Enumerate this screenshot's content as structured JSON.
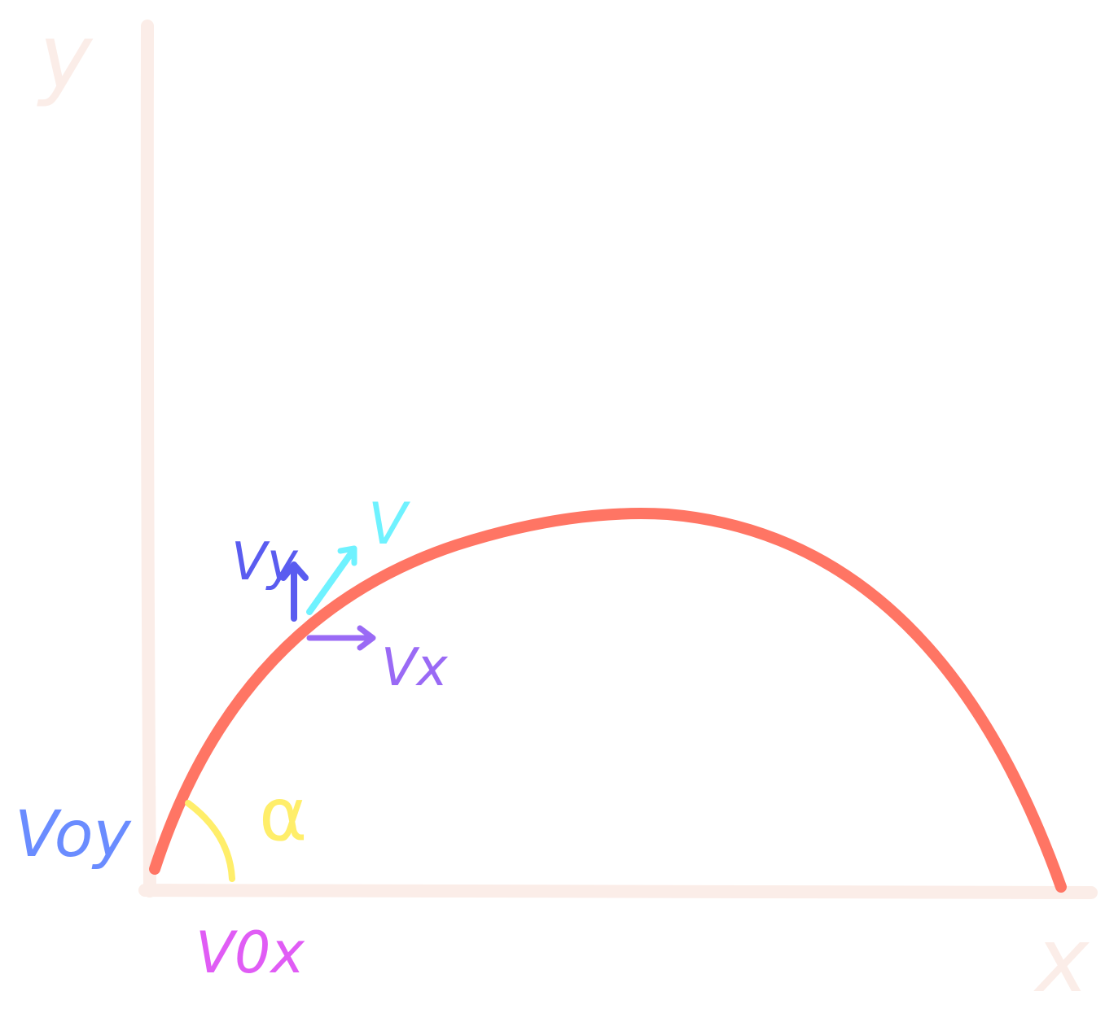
{
  "axes": {
    "y_label": "y",
    "x_label": "x"
  },
  "labels": {
    "v0y": "Voy",
    "v0x": "V0x",
    "alpha": "α",
    "v": "V",
    "vy": "Vy",
    "vx": "Vx"
  },
  "colors": {
    "axis": "#fbede8",
    "trajectory": "#ff7564",
    "angle_arc": "#ffee6a",
    "v0y": "#6a8cff",
    "v0x": "#e05cf5",
    "velocity": "#6ff2ff",
    "vy": "#5a5cf0",
    "vx": "#9a6af5",
    "background": "#ffffff"
  }
}
